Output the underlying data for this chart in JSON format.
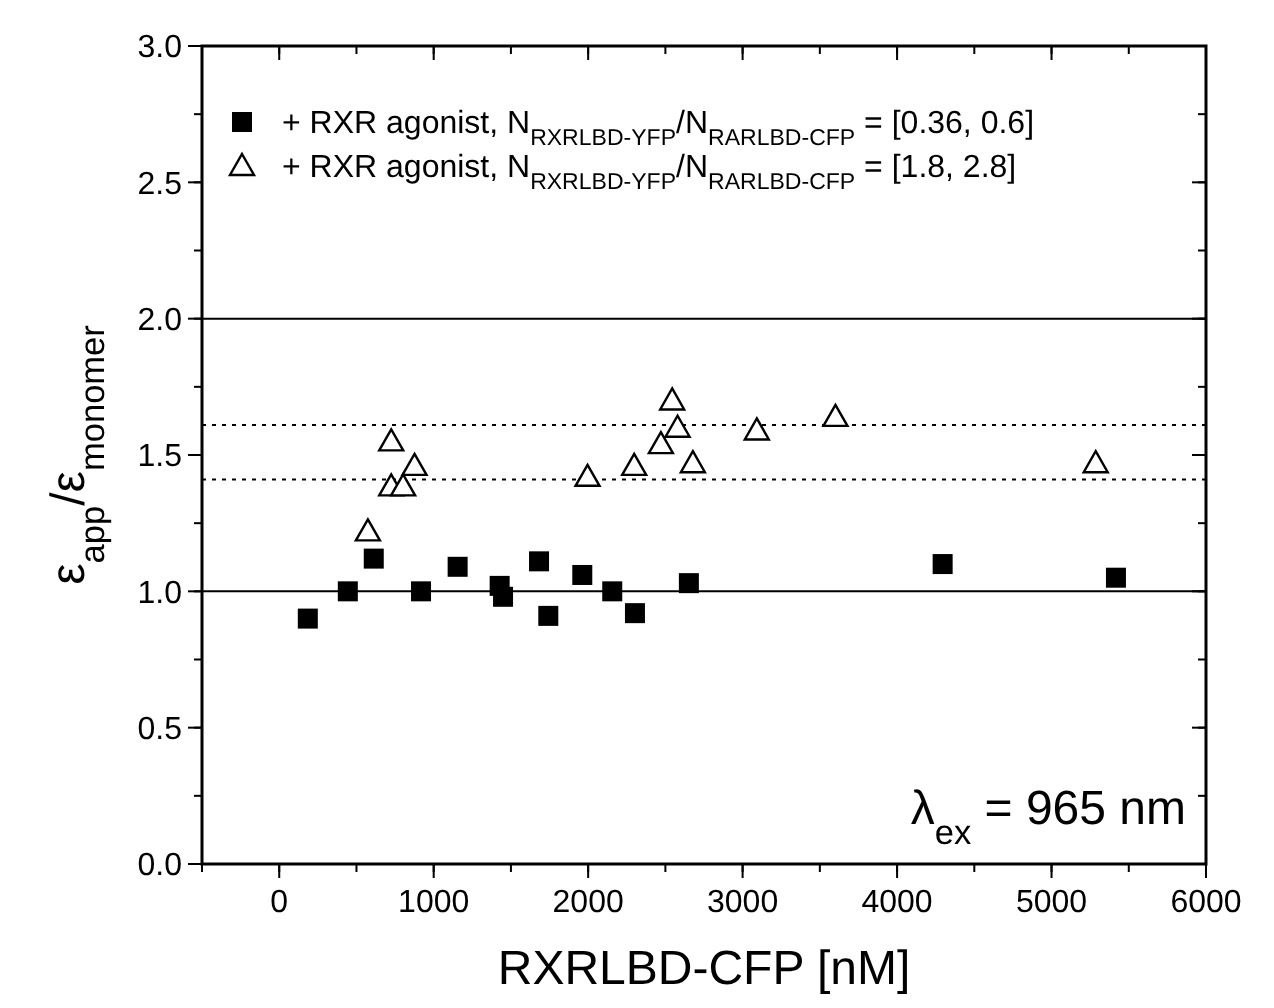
{
  "chart_data": {
    "type": "scatter",
    "xlabel": "RXRLBD-CFP [nM]",
    "ylabel": "ε$_{app}$/ε$_{monomer}$",
    "xlim": [
      -500,
      6000
    ],
    "xticks": [
      0,
      1000,
      2000,
      3000,
      4000,
      5000,
      6000
    ],
    "ylim": [
      0,
      3
    ],
    "yticks": [
      {
        "value": 0,
        "label": "0.0"
      },
      {
        "value": 0.5,
        "label": "0.5"
      },
      {
        "value": 1,
        "label": "1.0"
      },
      {
        "value": 1.5,
        "label": "1.5"
      },
      {
        "value": 2,
        "label": "2.0"
      },
      {
        "value": 2.5,
        "label": "2.5"
      },
      {
        "value": 3,
        "label": "3.0"
      }
    ],
    "legend": "top left",
    "grid": false,
    "series": [
      {
        "name": "+ RXR agonist, N$_{RXRLBD-YFP}$/N$_{RARLBD-CFP}$ = [0.36, 0.6]",
        "color": "#000000",
        "marker": "square",
        "x": [
          185,
          444,
          612,
          918,
          1155,
          1427,
          1449,
          1682,
          1742,
          1962,
          2156,
          2303,
          2652,
          4295,
          5417
        ],
        "values": [
          0.9,
          1.0,
          1.12,
          1.0,
          1.09,
          1.02,
          0.98,
          1.11,
          0.91,
          1.06,
          1.0,
          0.92,
          1.03,
          1.1,
          1.05
        ]
      },
      {
        "name": "+ RXR agonist, N$_{RXRLBD-YFP}$/N$_{RARLBD-CFP}$ = [1.8, 2.8]",
        "color": "#000000",
        "marker": "triangle",
        "x": [
          574,
          725,
          725,
          802,
          876,
          1996,
          2298,
          2471,
          2544,
          2579,
          2678,
          3092,
          3601,
          5286
        ],
        "values": [
          1.22,
          1.55,
          1.385,
          1.385,
          1.46,
          1.42,
          1.46,
          1.54,
          1.7,
          1.6,
          1.47,
          1.59,
          1.64,
          1.47
        ]
      }
    ],
    "ref_lines": [
      {
        "axis": "y",
        "value": 1,
        "color": "#000000",
        "line_style": "solid"
      },
      {
        "axis": "y",
        "value": 2,
        "color": "#000000",
        "line_style": "solid"
      },
      {
        "axis": "y",
        "value": 1.61,
        "color": "#000000",
        "line_style": "dotted"
      },
      {
        "axis": "y",
        "value": 1.41,
        "color": "#000000",
        "line_style": "dotted"
      }
    ],
    "annotations": [
      "λ$_{ex}$ = 965 nm"
    ]
  }
}
